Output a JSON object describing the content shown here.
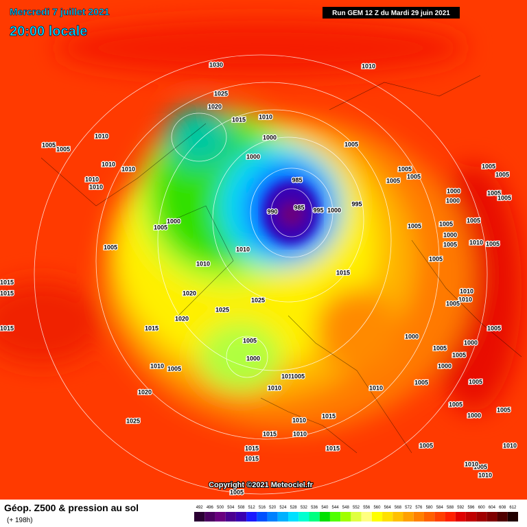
{
  "header": {
    "date": "Mercredi 7 juillet 2021",
    "time": "20:00 locale",
    "run": "Run GEM 12 Z du Mardi 29 juin 2021"
  },
  "copyright": "Copyright ©2021 Meteociel.fr",
  "footer": {
    "title": "Géop. Z500 & pression au sol",
    "lead": "(+ 198h)"
  },
  "scale": {
    "labels": [
      492,
      496,
      500,
      504,
      508,
      512,
      516,
      520,
      524,
      528,
      532,
      536,
      540,
      544,
      548,
      552,
      556,
      560,
      564,
      568,
      572,
      576,
      580,
      584,
      588,
      592,
      596,
      600,
      604,
      608,
      612
    ],
    "colors": [
      "#2b0033",
      "#4b0060",
      "#6a007f",
      "#4b0090",
      "#3a00b0",
      "#1a1aff",
      "#0050ff",
      "#0080ff",
      "#00b0ff",
      "#00e0ff",
      "#00ffd0",
      "#00ff80",
      "#00e000",
      "#50ff00",
      "#a0ff00",
      "#e0ff40",
      "#ffff80",
      "#ffff00",
      "#ffe000",
      "#ffc000",
      "#ffa000",
      "#ff8000",
      "#ff6000",
      "#ff4000",
      "#ff2000",
      "#e00000",
      "#c00000",
      "#a00000",
      "#800000",
      "#500000",
      "#200000"
    ]
  },
  "isobar_labels": [
    1030,
    1010,
    1025,
    1020,
    1015,
    1010,
    1010,
    1005,
    1005,
    1000,
    1005,
    1000,
    1010,
    1010,
    1010,
    1010,
    985,
    1005,
    1005,
    1005,
    1005,
    1005,
    990,
    985,
    995,
    1000,
    995,
    1000,
    1000,
    1005,
    1005,
    1000,
    1005,
    1005,
    1005,
    1005,
    1000,
    1005,
    1005,
    1010,
    1010,
    1005,
    1005,
    1010,
    1015,
    1015,
    1015,
    1020,
    1025,
    1010,
    1010,
    1005,
    1025,
    1020,
    1015,
    1015,
    1000,
    1000,
    1005,
    1005,
    1000,
    1005,
    1005,
    1000,
    1010,
    1005,
    1010,
    1005,
    1010,
    1010,
    1005,
    1005,
    1020,
    1005,
    1000,
    1010,
    1015,
    1025,
    1015,
    1010,
    1005,
    1015,
    1015,
    1005,
    1010,
    1015,
    1005,
    1010,
    1005,
    1010
  ]
}
